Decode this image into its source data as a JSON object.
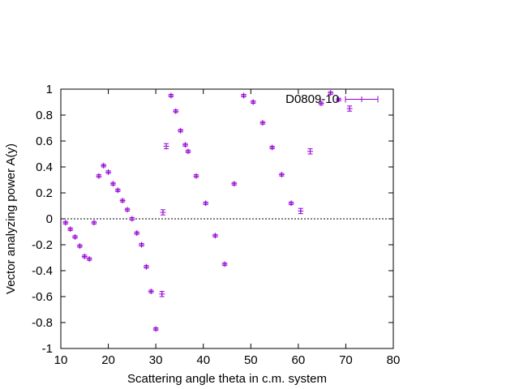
{
  "chart_data": {
    "type": "scatter",
    "xlabel": "Scattering angle theta in c.m. system",
    "ylabel": "Vector analyzing power A(y)",
    "xlim": [
      10,
      80
    ],
    "ylim": [
      -1,
      1
    ],
    "xticks": [
      10,
      20,
      30,
      40,
      50,
      60,
      70,
      80
    ],
    "yticks": [
      -1,
      -0.8,
      -0.6,
      -0.4,
      -0.2,
      0,
      0.2,
      0.4,
      0.6,
      0.8,
      1
    ],
    "xtick_labels": [
      "10",
      "20",
      "30",
      "40",
      "50",
      "60",
      "70",
      "80"
    ],
    "ytick_labels": [
      "-1",
      "-0.8",
      "-0.6",
      "-0.4",
      "-0.2",
      "0",
      "0.2",
      "0.4",
      "0.6",
      "0.8",
      "1"
    ],
    "zero_line": true,
    "grid": false,
    "legend_position": "top-right",
    "color": "#9400d3",
    "series": [
      {
        "name": "D0809-10",
        "points": [
          {
            "x": 11.0,
            "y": -0.03,
            "err": 0.01
          },
          {
            "x": 12.0,
            "y": -0.08,
            "err": 0.01
          },
          {
            "x": 13.0,
            "y": -0.14,
            "err": 0.01
          },
          {
            "x": 14.0,
            "y": -0.21,
            "err": 0.01
          },
          {
            "x": 15.0,
            "y": -0.29,
            "err": 0.01
          },
          {
            "x": 16.0,
            "y": -0.31,
            "err": 0.01
          },
          {
            "x": 17.0,
            "y": -0.03,
            "err": 0.01
          },
          {
            "x": 18.0,
            "y": 0.33,
            "err": 0.01
          },
          {
            "x": 19.0,
            "y": 0.41,
            "err": 0.01
          },
          {
            "x": 20.0,
            "y": 0.36,
            "err": 0.01
          },
          {
            "x": 21.0,
            "y": 0.27,
            "err": 0.01
          },
          {
            "x": 22.0,
            "y": 0.22,
            "err": 0.01
          },
          {
            "x": 23.0,
            "y": 0.14,
            "err": 0.01
          },
          {
            "x": 24.0,
            "y": 0.07,
            "err": 0.01
          },
          {
            "x": 25.0,
            "y": 0.0,
            "err": 0.01
          },
          {
            "x": 26.0,
            "y": -0.11,
            "err": 0.01
          },
          {
            "x": 27.0,
            "y": -0.2,
            "err": 0.01
          },
          {
            "x": 28.0,
            "y": -0.37,
            "err": 0.01
          },
          {
            "x": 29.0,
            "y": -0.56,
            "err": 0.01
          },
          {
            "x": 30.0,
            "y": -0.85,
            "err": 0.01
          },
          {
            "x": 31.3,
            "y": -0.58,
            "err": 0.02
          },
          {
            "x": 31.5,
            "y": 0.05,
            "err": 0.02
          },
          {
            "x": 32.2,
            "y": 0.56,
            "err": 0.02
          },
          {
            "x": 33.2,
            "y": 0.95,
            "err": 0.01
          },
          {
            "x": 34.2,
            "y": 0.83,
            "err": 0.01
          },
          {
            "x": 35.2,
            "y": 0.68,
            "err": 0.01
          },
          {
            "x": 36.2,
            "y": 0.57,
            "err": 0.01
          },
          {
            "x": 36.8,
            "y": 0.52,
            "err": 0.01
          },
          {
            "x": 38.5,
            "y": 0.33,
            "err": 0.01
          },
          {
            "x": 40.5,
            "y": 0.12,
            "err": 0.01
          },
          {
            "x": 42.5,
            "y": -0.13,
            "err": 0.01
          },
          {
            "x": 44.5,
            "y": -0.35,
            "err": 0.01
          },
          {
            "x": 46.5,
            "y": 0.27,
            "err": 0.01
          },
          {
            "x": 48.5,
            "y": 0.95,
            "err": 0.01
          },
          {
            "x": 50.5,
            "y": 0.9,
            "err": 0.01
          },
          {
            "x": 52.5,
            "y": 0.74,
            "err": 0.01
          },
          {
            "x": 54.5,
            "y": 0.55,
            "err": 0.01
          },
          {
            "x": 56.5,
            "y": 0.34,
            "err": 0.01
          },
          {
            "x": 58.5,
            "y": 0.12,
            "err": 0.01
          },
          {
            "x": 60.5,
            "y": 0.06,
            "err": 0.02
          },
          {
            "x": 62.5,
            "y": 0.52,
            "err": 0.02
          },
          {
            "x": 64.8,
            "y": 0.89,
            "err": 0.01
          },
          {
            "x": 66.8,
            "y": 0.97,
            "err": 0.01
          },
          {
            "x": 68.5,
            "y": 0.92,
            "err": 0.01
          },
          {
            "x": 70.8,
            "y": 0.85,
            "err": 0.02
          }
        ]
      }
    ]
  }
}
